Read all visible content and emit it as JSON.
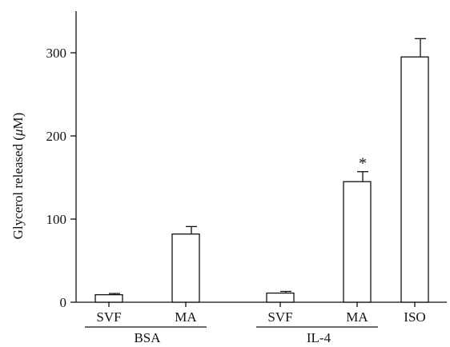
{
  "chart_data": {
    "type": "bar",
    "ylabel": "Glycerol released (",
    "ylabel_unit": "μ",
    "ylabel_unit_suffix": "M)",
    "ylim": [
      0,
      340
    ],
    "yticks": [
      0,
      100,
      200,
      300
    ],
    "ytick_labels": [
      "0",
      "100",
      "200",
      "300"
    ],
    "grid": false,
    "legend": "none",
    "categories": [
      "SVF",
      "MA",
      "SVF",
      "MA",
      "ISO"
    ],
    "values": [
      9,
      82,
      11,
      145,
      295
    ],
    "errors": [
      1.5,
      9,
      2,
      12,
      22
    ],
    "annotations": [
      "",
      "",
      "",
      "*",
      ""
    ],
    "groups": [
      {
        "label": "BSA",
        "members": [
          0,
          1
        ]
      },
      {
        "label": "IL-4",
        "members": [
          2,
          3
        ]
      }
    ],
    "bar_fill": "#ffffff",
    "line_color": "#111111"
  }
}
